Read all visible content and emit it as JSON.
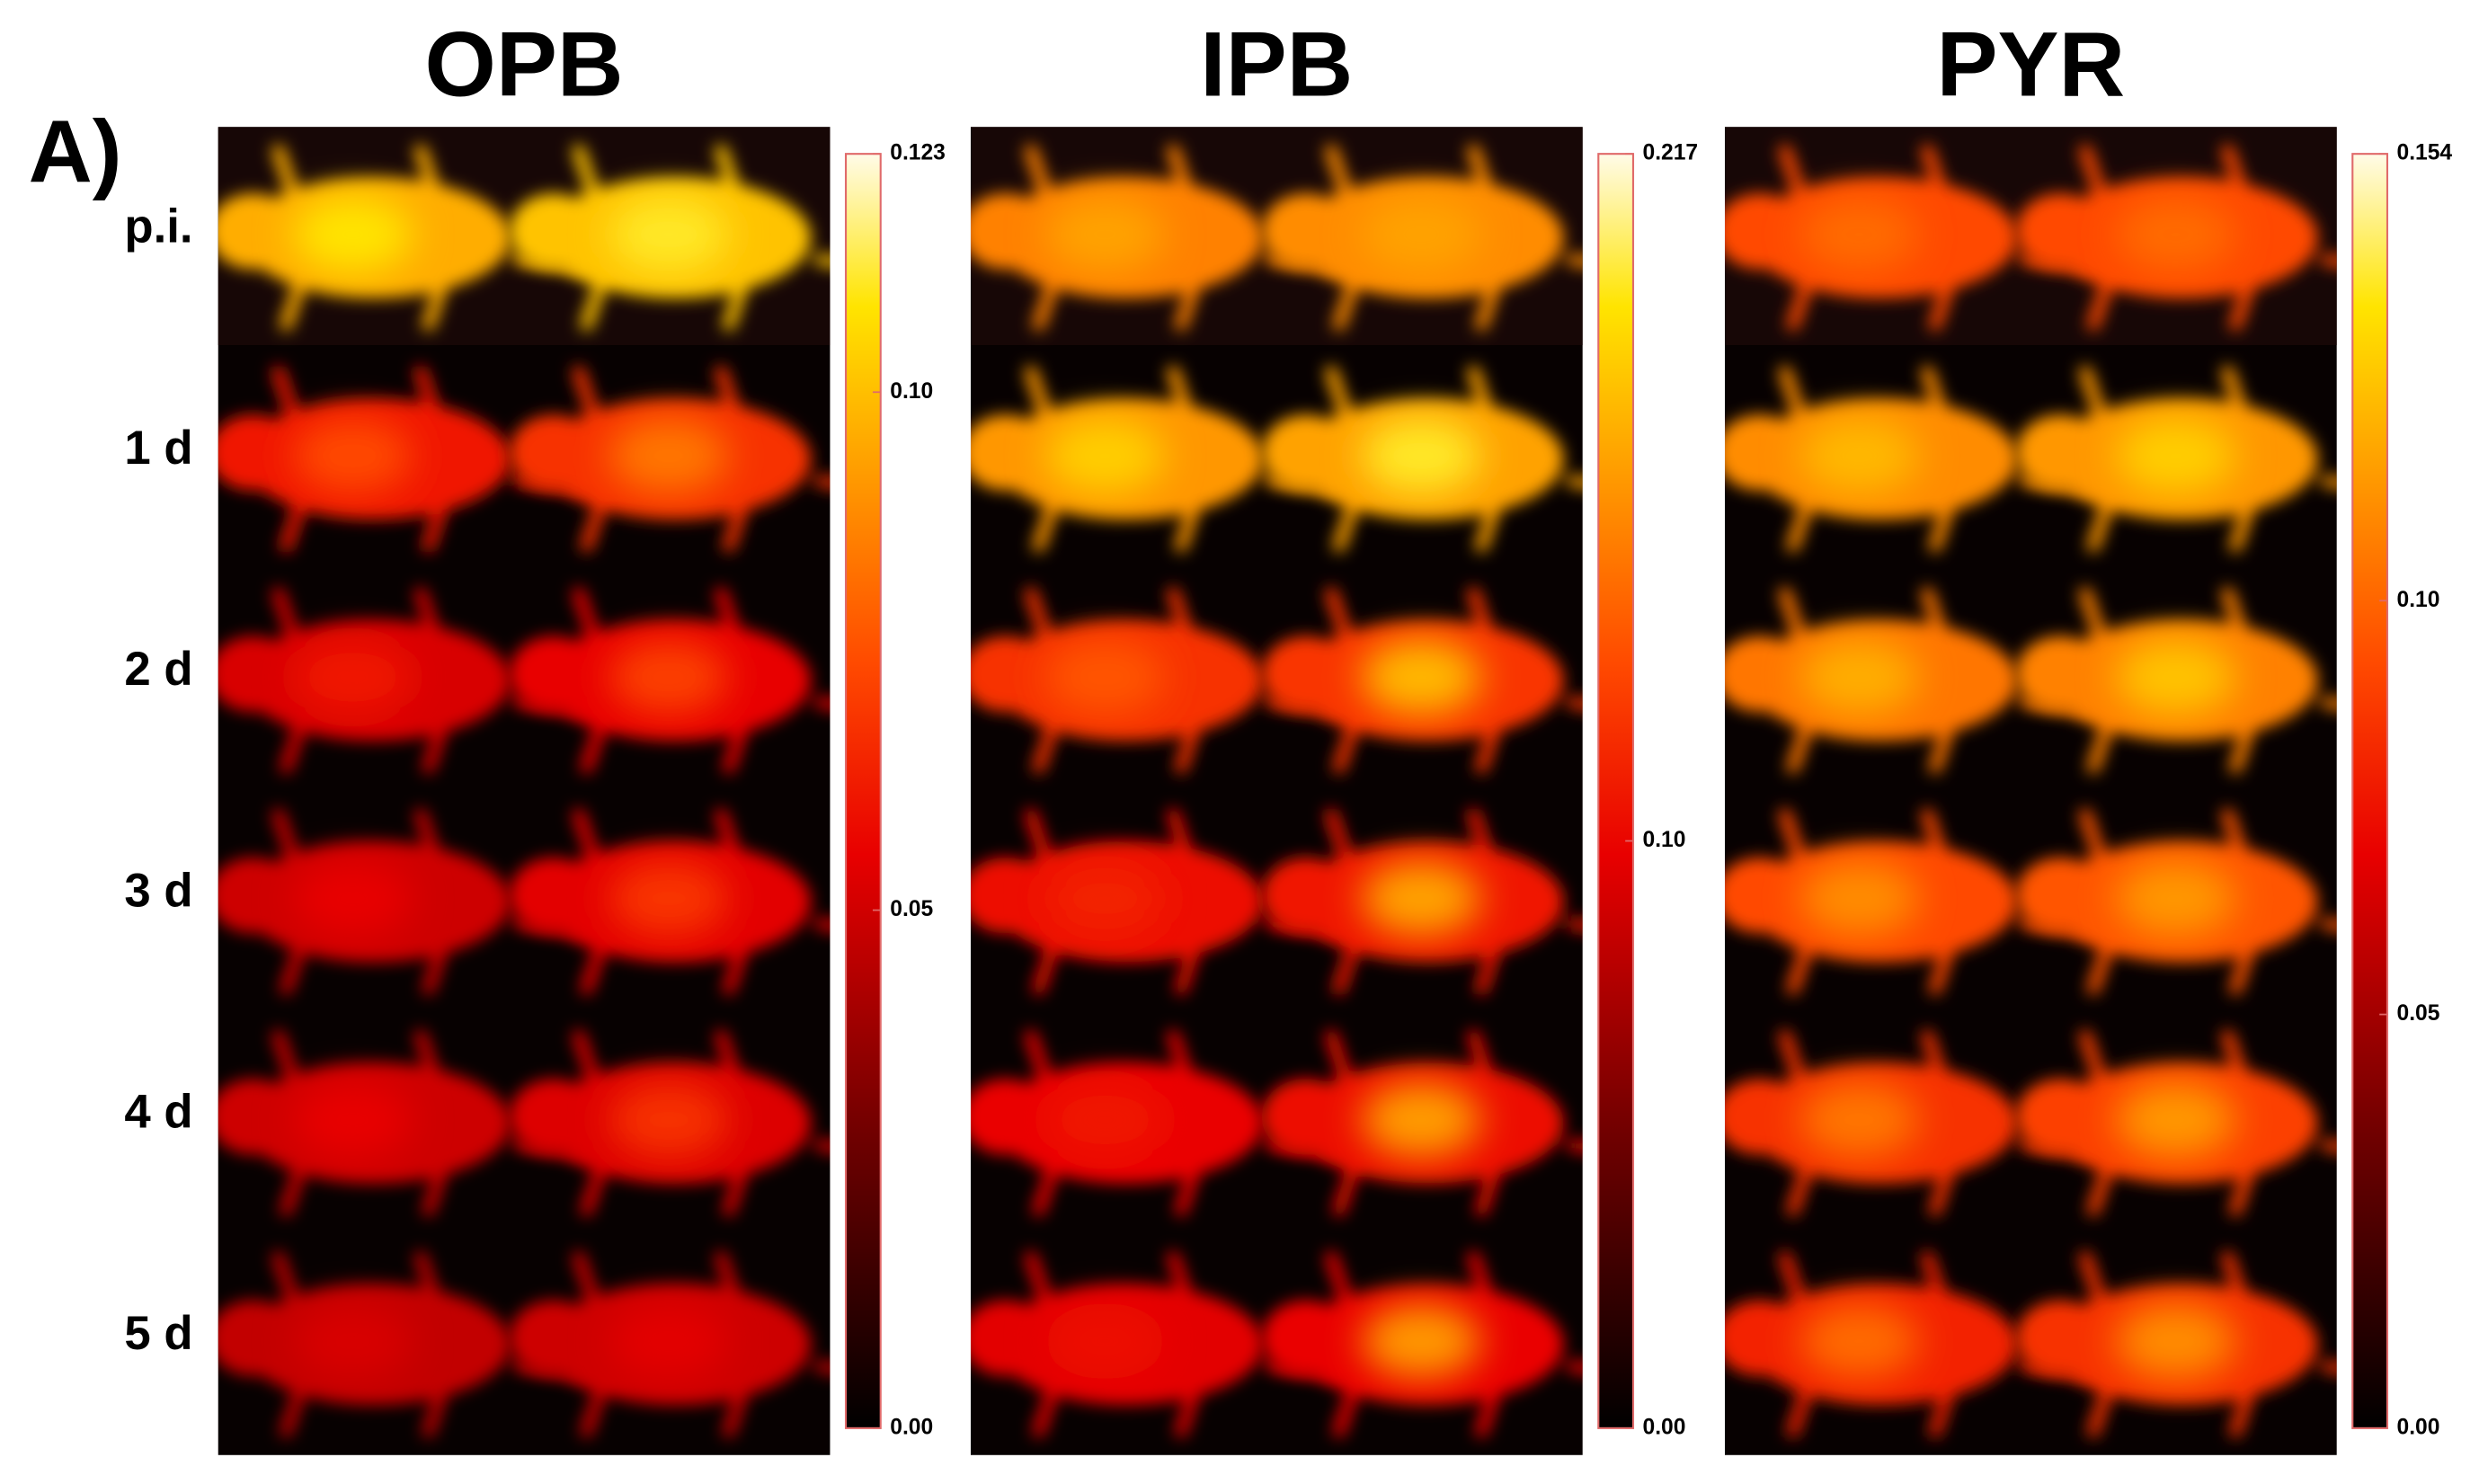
{
  "panel_label": "A)",
  "row_labels": [
    "p.i.",
    "1 d",
    "2 d",
    "3 d",
    "4 d",
    "5 d"
  ],
  "panels": [
    {
      "title": "OPB",
      "colorbar": {
        "range": [
          0,
          0.123
        ],
        "ticks": [
          {
            "value": 0,
            "label": "0.00"
          },
          0.05,
          {
            "value": 0.1,
            "label": "0.10"
          },
          0.123
        ]
      }
    },
    {
      "title": "IPB",
      "colorbar": {
        "range": [
          0,
          0.217
        ],
        "ticks": [
          {
            "value": 0,
            "label": "0.00"
          },
          {
            "value": 0.1,
            "label": "0.10"
          },
          0.217
        ]
      }
    },
    {
      "title": "PYR",
      "colorbar": {
        "range": [
          0,
          0.154
        ],
        "ticks": [
          {
            "value": 0,
            "label": "0.00"
          },
          0.05,
          {
            "value": 0.1,
            "label": "0.10"
          },
          0.154
        ]
      }
    }
  ]
}
